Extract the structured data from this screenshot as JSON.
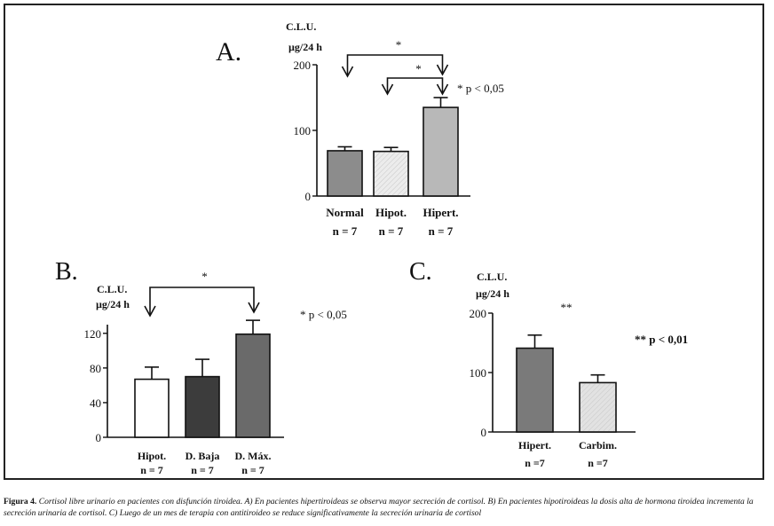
{
  "caption": {
    "lead": "Figura 4.",
    "text": " Cortisol libre urinario en pacientes con disfunción tiroidea. A) En pacientes hipertiroideas se observa mayor secreción de cortisol. B) En pacientes hipotiroideas la dosis alta de hormona tiroidea incrementa la secreción urinaria de cortisol. C) Luego de un mes de terapia con antitiroideo se reduce significativamente la secreción urinaria de cortisol"
  },
  "chart_data": [
    {
      "id": "A",
      "type": "bar",
      "panel_label": "A.",
      "title": "C.L.U.",
      "ylabel": "µg/24 h",
      "ylim": [
        0,
        200
      ],
      "yticks": [
        0,
        100,
        200
      ],
      "categories": [
        "Normal",
        "Hipot.",
        "Hipert."
      ],
      "n_labels": [
        "n = 7",
        "n = 7",
        "n = 7"
      ],
      "values": [
        69,
        68,
        135
      ],
      "errors": [
        6,
        6,
        15
      ],
      "colors": [
        "#8c8c8c",
        "#ececec",
        "#b8b8b8"
      ],
      "significance": [
        {
          "from": 0,
          "to": 2,
          "label": "*"
        },
        {
          "from": 1,
          "to": 2,
          "label": "*"
        }
      ],
      "note": "* p < 0,05"
    },
    {
      "id": "B",
      "type": "bar",
      "panel_label": "B.",
      "title": "C.L.U.",
      "ylabel": "µg/24 h",
      "ylim": [
        0,
        130
      ],
      "yticks": [
        0,
        40,
        80,
        120
      ],
      "categories": [
        "Hipot.",
        "D. Baja",
        "D. Máx."
      ],
      "n_labels": [
        "n = 7",
        "n = 7",
        "n = 7"
      ],
      "values": [
        67,
        70,
        119
      ],
      "errors": [
        14,
        20,
        16
      ],
      "colors": [
        "#ffffff",
        "#3c3c3c",
        "#6a6a6a"
      ],
      "significance": [
        {
          "from": 0,
          "to": 2,
          "label": "*"
        }
      ],
      "note": "* p < 0,05"
    },
    {
      "id": "C",
      "type": "bar",
      "panel_label": "C.",
      "title": "C.L.U.",
      "ylabel": "µg/24 h",
      "ylim": [
        0,
        200
      ],
      "yticks": [
        0,
        100,
        200
      ],
      "categories": [
        "Hipert.",
        "Carbim."
      ],
      "n_labels": [
        "n =7",
        "n =7"
      ],
      "values": [
        141,
        83
      ],
      "errors": [
        22,
        13
      ],
      "colors": [
        "#7a7a7a",
        "#e2e2e2"
      ],
      "significance_label": "**",
      "note": "** p < 0,01"
    }
  ]
}
